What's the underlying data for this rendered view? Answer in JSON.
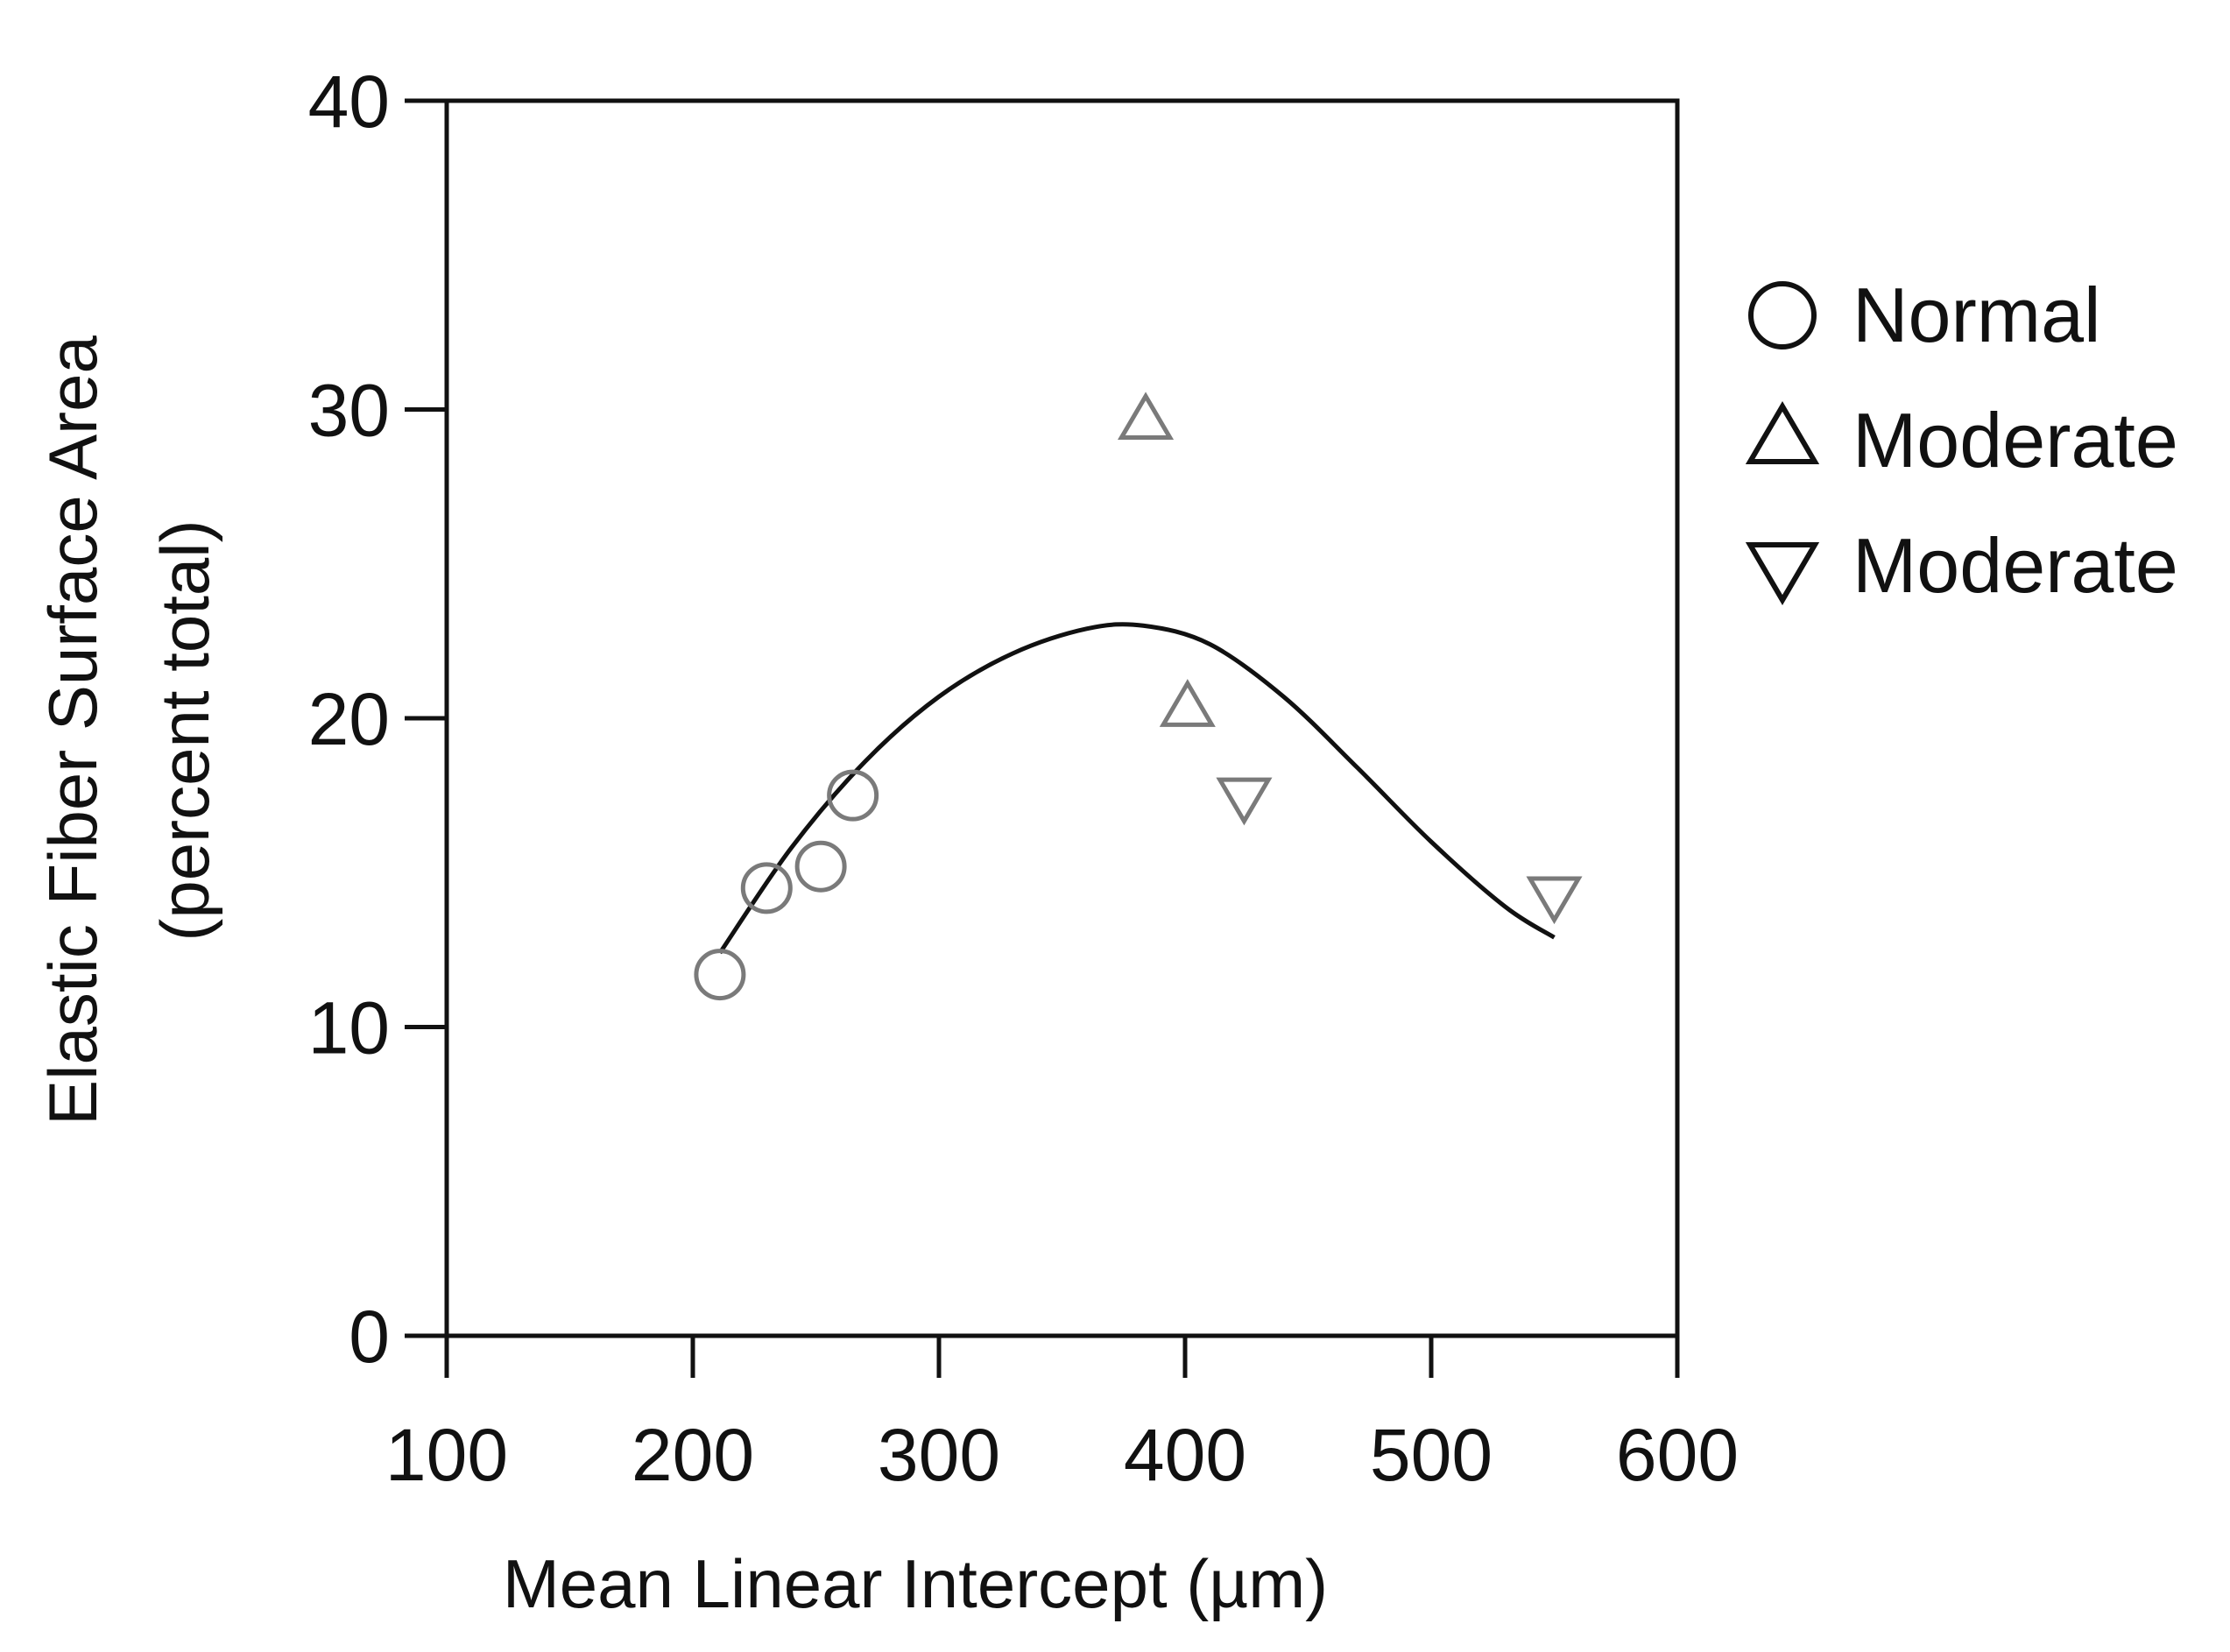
{
  "chart_data": {
    "type": "scatter",
    "title": "",
    "xlabel": "Mean Linear Intercept (µm)",
    "ylabel_line1": "Elastic Fiber Surface Area",
    "ylabel_line2": "(percent total)",
    "xlim": [
      100,
      600
    ],
    "ylim": [
      0,
      40
    ],
    "xticks": [
      100,
      200,
      300,
      400,
      500,
      600
    ],
    "yticks": [
      0,
      10,
      20,
      30,
      40
    ],
    "grid": false,
    "legend_position": "right",
    "series": [
      {
        "name": "Normal",
        "marker": "circle",
        "color": "#7a7a7a",
        "points": [
          [
            211,
            11.7
          ],
          [
            230,
            14.5
          ],
          [
            252,
            15.2
          ],
          [
            265,
            17.5
          ]
        ]
      },
      {
        "name": "Moderate",
        "marker": "triangle-up",
        "color": "#7a7a7a",
        "points": [
          [
            384,
            29.6
          ],
          [
            401,
            20.3
          ]
        ]
      },
      {
        "name": "Moderate",
        "marker": "triangle-down",
        "color": "#7a7a7a",
        "points": [
          [
            424,
            17.5
          ],
          [
            550,
            14.3
          ]
        ]
      }
    ],
    "fit_curve": {
      "color": "#111111",
      "points": [
        [
          211,
          12.4
        ],
        [
          240,
          15.8
        ],
        [
          270,
          18.6
        ],
        [
          300,
          20.7
        ],
        [
          330,
          22.1
        ],
        [
          360,
          22.9
        ],
        [
          383,
          23.0
        ],
        [
          410,
          22.4
        ],
        [
          440,
          20.7
        ],
        [
          470,
          18.4
        ],
        [
          500,
          16.0
        ],
        [
          530,
          13.9
        ],
        [
          550,
          12.9
        ]
      ]
    }
  }
}
